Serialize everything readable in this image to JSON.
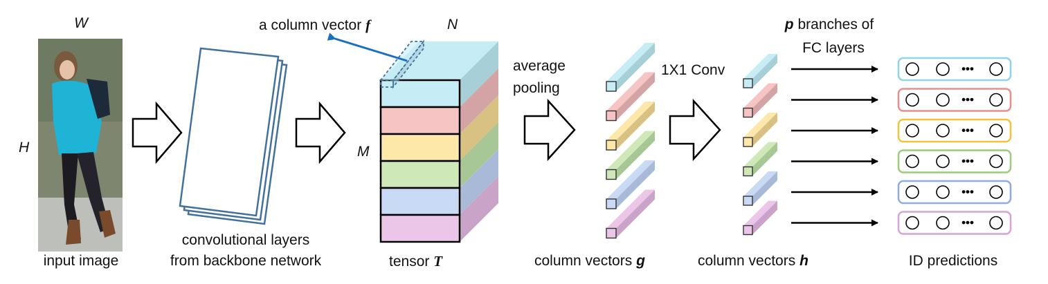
{
  "labels": {
    "width": "W",
    "height": "H",
    "input_image": "input image",
    "conv_line1": "convolutional layers",
    "conv_line2": "from backbone network",
    "tensor_word": "tensor",
    "tensor_symbol": "T",
    "col_vec_text": "a column vector",
    "col_vec_symbol": "f",
    "n": "N",
    "m": "M",
    "avg_line1": "average",
    "avg_line2": "pooling",
    "conv1x1": "1X1 Conv",
    "branch_symbol": "p",
    "branch_line1": "branches of",
    "branch_line2": "FC layers",
    "colvec_g_word": "column vectors",
    "colvec_g_symbol": "g",
    "colvec_h_word": "column vectors",
    "colvec_h_symbol": "h",
    "id_predictions": "ID predictions",
    "ellipsis": "•••"
  },
  "stripe_colors": {
    "front": [
      "#c6ecf6",
      "#f7c4c4",
      "#fde8a9",
      "#cfe8b7",
      "#c9daf5",
      "#ebc6e8"
    ],
    "side": [
      "#a6cfd8",
      "#d3a3a6",
      "#d8c183",
      "#a7c796",
      "#a9b9d8",
      "#c9a4c8"
    ],
    "border": [
      "#8fd3ea",
      "#ee8b8b",
      "#f3c43a",
      "#9ccc7a",
      "#8eabe6",
      "#d9a0d9"
    ]
  },
  "accent_blue": "#1b6fc2",
  "conv_stroke": "#41719c",
  "branch_count": 6
}
